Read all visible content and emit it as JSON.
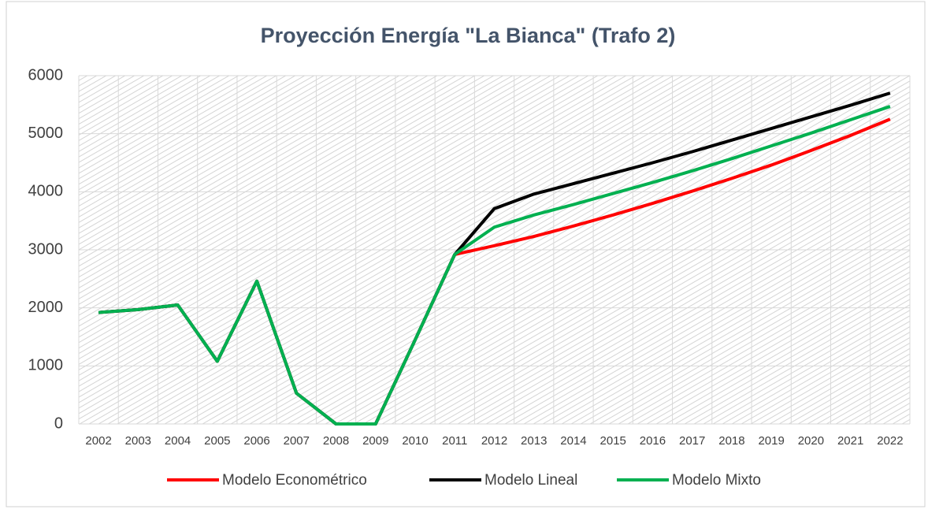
{
  "chart_data": {
    "type": "line",
    "title": "Proyección Energía \"La Bianca\" (Trafo 2)",
    "categories": [
      "2002",
      "2003",
      "2004",
      "2005",
      "2006",
      "2007",
      "2008",
      "2009",
      "2010",
      "2011",
      "2012",
      "2013",
      "2014",
      "2015",
      "2016",
      "2017",
      "2018",
      "2019",
      "2020",
      "2021",
      "2022"
    ],
    "series": [
      {
        "name": "Modelo Econométrico",
        "color": "#ff0000",
        "values": [
          1920,
          1970,
          2050,
          1080,
          2460,
          530,
          0,
          0,
          1450,
          2920,
          3070,
          3230,
          3410,
          3600,
          3800,
          4010,
          4230,
          4460,
          4710,
          4970,
          5250
        ]
      },
      {
        "name": "Modelo Lineal",
        "color": "#000000",
        "values": [
          1920,
          1970,
          2050,
          1080,
          2460,
          530,
          0,
          0,
          1450,
          2920,
          3710,
          3960,
          4140,
          4320,
          4500,
          4690,
          4890,
          5090,
          5290,
          5490,
          5700
        ]
      },
      {
        "name": "Modelo Mixto",
        "color": "#00b050",
        "values": [
          1920,
          1970,
          2050,
          1080,
          2460,
          530,
          0,
          0,
          1450,
          2920,
          3390,
          3600,
          3780,
          3970,
          4160,
          4360,
          4570,
          4790,
          5010,
          5240,
          5470
        ]
      }
    ],
    "ylim": [
      0,
      6000
    ],
    "yticks": [
      0,
      1000,
      2000,
      3000,
      4000,
      5000,
      6000
    ],
    "grid": true,
    "legend": "bottom"
  }
}
